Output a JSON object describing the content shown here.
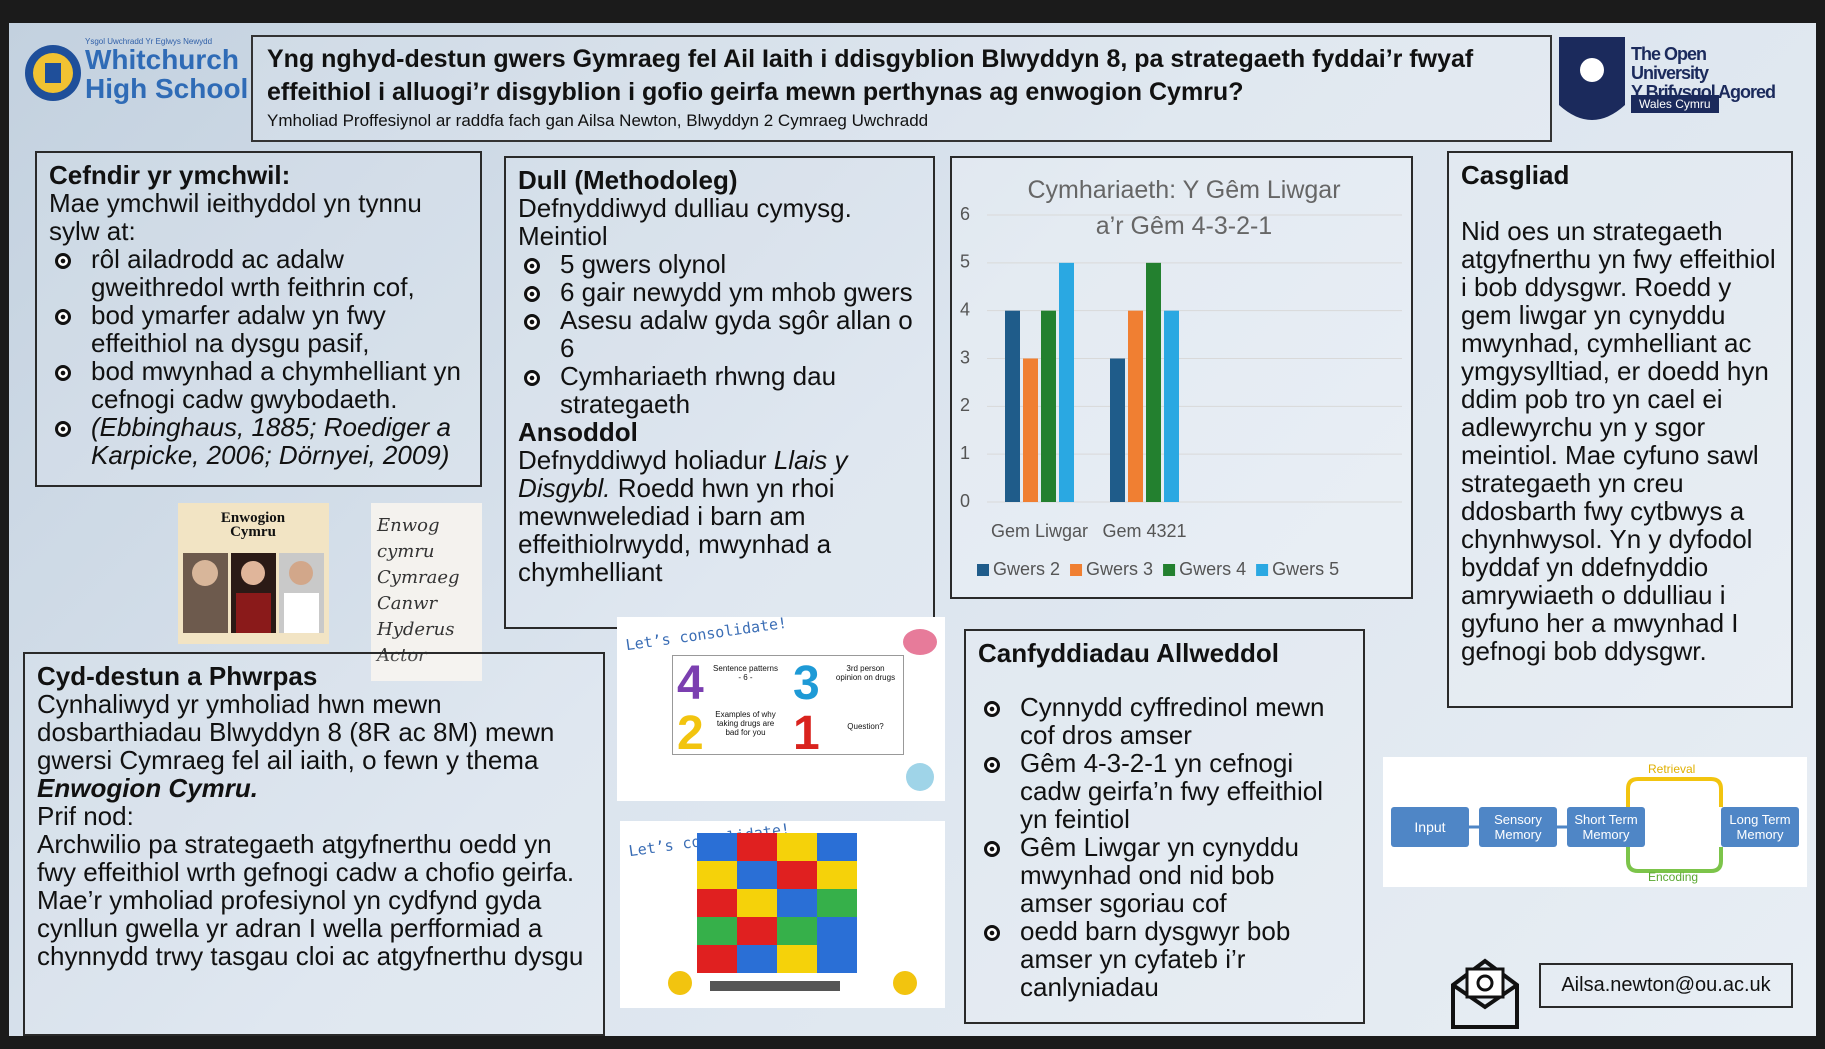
{
  "header": {
    "school_small": "Ysgol Uwchradd Yr Eglwys Newydd",
    "school": "Whitchurch High School",
    "title": "Yng nghyd-destun gwers Gymraeg fel Ail Iaith i ddisgyblion Blwyddyn 8, pa strategaeth fyddai’r fwyaf effeithiol i alluogi’r disgyblion i gofio geirfa mewn perthynas ag enwogion Cymru?",
    "subtitle": "Ymholiad Proffesiynol ar raddfa fach gan Ailsa Newton, Blwyddyn 2 Cymraeg Uwchradd",
    "university": "The Open University",
    "university_cy": "Y Brifysgol Agored",
    "region": "Wales Cymru"
  },
  "background": {
    "heading": "Cefndir yr ymchwil:",
    "intro": "Mae ymchwil ieithyddol yn tynnu sylw at:",
    "bullets": [
      "rôl ailadrodd ac adalw gweithredol wrth feithrin cof,",
      "bod ymarfer adalw yn fwy effeithiol na dysgu pasif,",
      "bod mwynhad a chymhelliant yn cefnogi cadw gwybodaeth."
    ],
    "citation": "(Ebbinghaus, 1885; Roediger a Karpicke, 2006; Dörnyei, 2009)"
  },
  "method": {
    "heading": "Dull (Methodoleg)",
    "intro": "Defnyddiwyd dulliau cymysg.",
    "quant_heading": "Meintiol",
    "bullets": [
      "5 gwers olynol",
      "6 gair newydd ym mhob gwers",
      "Asesu adalw gyda sgôr allan o 6",
      "Cymhariaeth rhwng dau strategaeth"
    ],
    "qual_heading": "Ansoddol",
    "qual_before": "Defnyddiwyd holiadur",
    "qual_italic": "Llais y Disgybl.",
    "qual_after": "Roedd hwn yn rhoi mewnweledi­ad i barn am effeithiolrwydd, mwynhad a chymhelliant"
  },
  "chart_data": {
    "type": "bar",
    "title": "Cymhariaeth: Y Gêm Liwgar a’r Gêm 4-3-2-1",
    "categories": [
      "Gem Liwgar",
      "Gem 4321"
    ],
    "series": [
      {
        "name": "Gwers 2",
        "color": "#1f5c8a",
        "values": [
          4,
          3
        ]
      },
      {
        "name": "Gwers 3",
        "color": "#f07f32",
        "values": [
          3,
          4
        ]
      },
      {
        "name": "Gwers 4",
        "color": "#23802f",
        "values": [
          4,
          5
        ]
      },
      {
        "name": "Gwers 5",
        "color": "#2aa8e2",
        "values": [
          5,
          4
        ]
      }
    ],
    "ylim": [
      0,
      6
    ],
    "yticks": [
      0,
      1,
      2,
      3,
      4,
      5,
      6
    ],
    "grid": true,
    "legend": "bottom"
  },
  "conclusion": {
    "heading": "Casgliad",
    "text": "Nid oes un strategaeth atgyfnerthu yn fwy effeithiol i bob ddysgwr. Roedd y gem liwgar yn cynyddu mwynhad, cymhelliant ac ymgysylltiad, er doedd hyn ddim pob tro yn cael ei adlewyrchu yn y sgor meintiol. Mae cyfuno sawl strategaeth yn creu ddosbarth fwy cytbwys a chynhwysol. Yn y dyfodol byddaf yn ddefnyddio amrywiaeth o ddulliau i gyfuno her a mwynhad I gefnogi bob ddysgwr."
  },
  "images": {
    "card_title": "Enwogion Cymru",
    "handwriting": [
      "Enwog",
      "cymru",
      "Cymraeg",
      "Canwr",
      "Hyderus",
      "Actor"
    ],
    "consolidate_title": "Let’s consolidate!",
    "numbers": [
      "4",
      "3",
      "2",
      "1"
    ],
    "cells": [
      "Sentence patterns - 6 -",
      "3rd person opinion on drugs",
      "Examples of why taking drugs are bad for you",
      "Question?"
    ]
  },
  "context": {
    "heading": "Cyd-destun a Phwrpas",
    "para1": "Cynhaliwyd yr ymholiad hwn mewn dosbarthiadau Blwyddyn 8 (8R ac 8M) mewn gwersi Cymraeg fel ail iaith, o fewn y thema",
    "theme": "Enwogion Cymru.",
    "aim_heading": "Prif nod:",
    "aim": "Archwilio pa strategaeth atgyfnerthu oedd yn fwy effeithiol wrth gefnogi cadw a chofio geirfa.",
    "para2": "Mae’r ymholiad profesiynol yn cydfynd gyda cynllun gwella yr adran I wella perfformiad a chynnydd trwy tasgau cloi ac atgyfnerthu dysgu"
  },
  "findings": {
    "heading": "Canfyddiadau Allweddol",
    "bullets": [
      "Cynnydd cyffredinol mewn cof dros amser",
      "Gêm 4-3-2-1 yn cefnogi cadw geirfa’n fwy effeithiol yn feintiol",
      "Gêm Liwgar yn cynyddu mwynhad ond nid bob amser sgoriau cof",
      "oedd barn dysgwyr bob amser yn cyfateb i’r canlyniadau"
    ]
  },
  "diagram": {
    "nodes": [
      "Input",
      "Sensory Memory",
      "Short Term Memory",
      "Long Term Memory"
    ],
    "retrieval": "Retrieval",
    "encoding": "Encoding"
  },
  "contact": {
    "email": "Ailsa.newton@ou.ac.uk"
  }
}
